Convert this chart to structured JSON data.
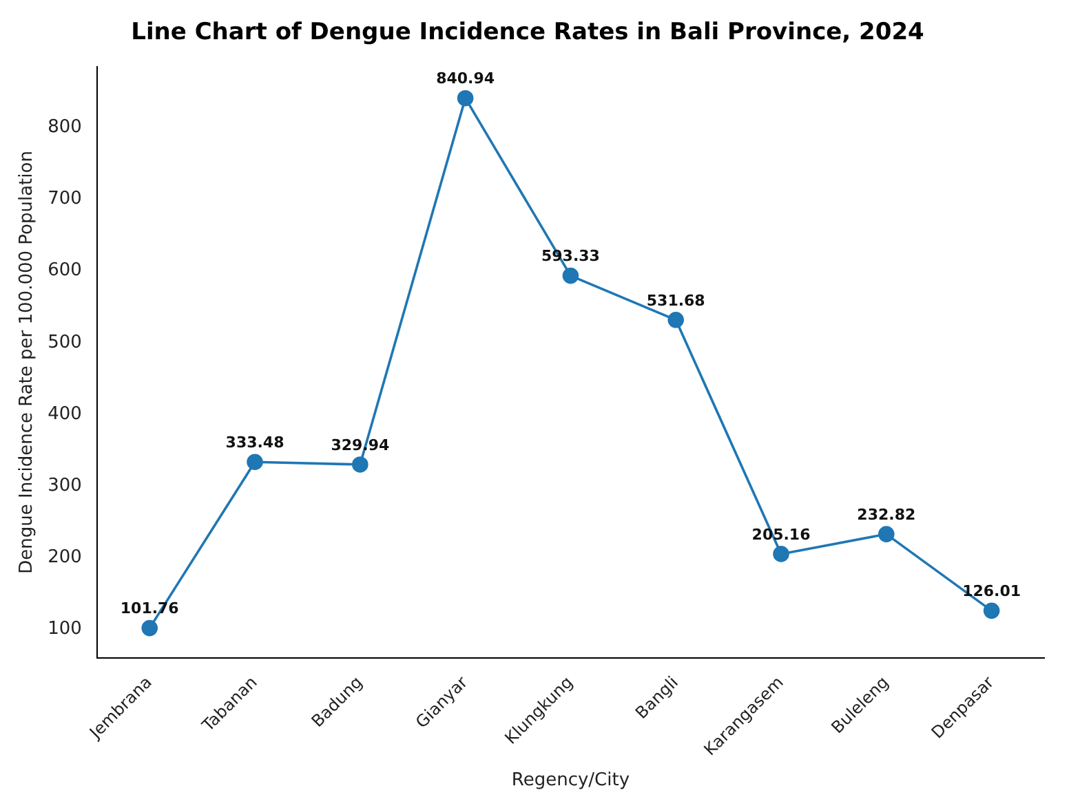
{
  "chart_data": {
    "type": "line",
    "title": "Line Chart of Dengue Incidence Rates in Bali Province, 2024",
    "xlabel": "Regency/City",
    "ylabel": "Dengue Incidence Rate per 100.000 Population",
    "categories": [
      "Jembrana",
      "Tabanan",
      "Badung",
      "Gianyar",
      "Klungkung",
      "Bangli",
      "Karangasem",
      "Buleleng",
      "Denpasar"
    ],
    "series": [
      {
        "color": "#1f77b4",
        "values": [
          101.76,
          333.48,
          329.94,
          840.94,
          593.33,
          531.68,
          205.16,
          232.82,
          126.01
        ]
      }
    ],
    "ylim": [
      60,
      885
    ],
    "yticks": [
      100,
      200,
      300,
      400,
      500,
      600,
      700,
      800
    ],
    "grid": false,
    "legend": false,
    "marker": "circle",
    "line_style": "solid",
    "data_labels": true
  }
}
